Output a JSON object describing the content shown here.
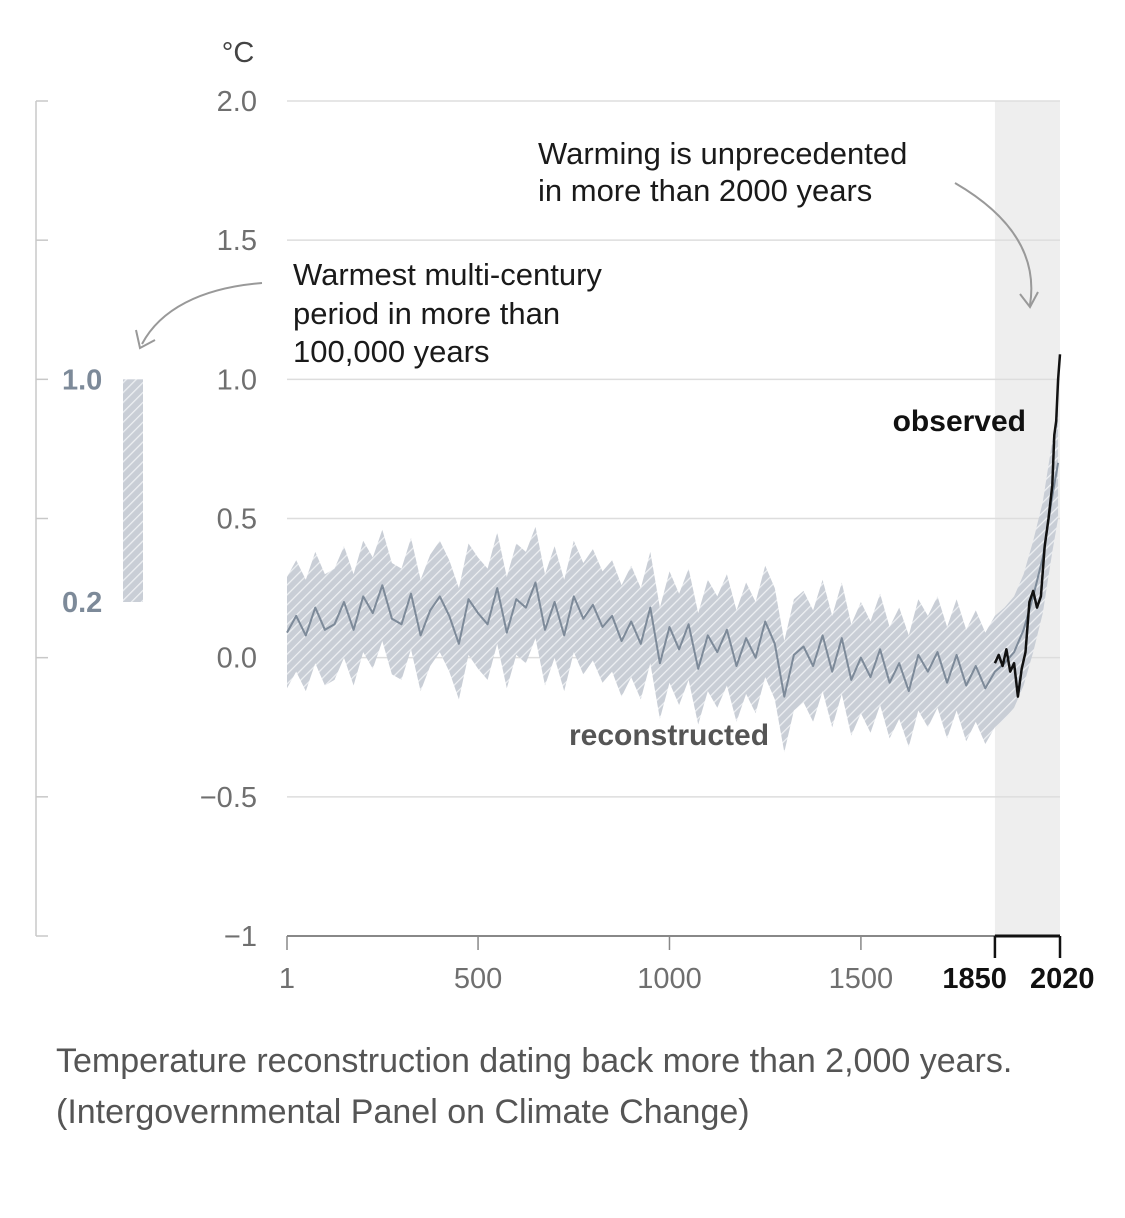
{
  "caption": "Temperature reconstruction dating back more than 2,000 years. (Intergovernmental Panel on Climate Change)",
  "chart_data": {
    "type": "line",
    "unit": "°C",
    "xlim": [
      1,
      2020
    ],
    "ylim": [
      -1,
      2.0
    ],
    "x_ticks": [
      "1",
      "500",
      "1000",
      "1500",
      "1850",
      "2020"
    ],
    "x_ticks_bold": [
      "1850",
      "2020"
    ],
    "y_ticks": [
      "2.0",
      "1.5",
      "1.0",
      "0.5",
      "0.0",
      "−0.5",
      "−1"
    ],
    "grid": "horizontal",
    "shaded_period": [
      1850,
      2020
    ],
    "side_bar": {
      "range": [
        0.2,
        1.0
      ],
      "labels": [
        "1.0",
        "0.2"
      ]
    },
    "annotations": {
      "unprecedented": [
        "Warming is unprecedented",
        "in more than 2000 years"
      ],
      "warmest": [
        "Warmest multi-century",
        "period in more than",
        "100,000 years"
      ]
    },
    "series": [
      {
        "name": "reconstructed",
        "color": "#7d8a99",
        "x": [
          1,
          25,
          50,
          75,
          100,
          125,
          150,
          175,
          200,
          225,
          250,
          275,
          300,
          325,
          350,
          375,
          400,
          425,
          450,
          475,
          500,
          525,
          550,
          575,
          600,
          625,
          650,
          675,
          700,
          725,
          750,
          775,
          800,
          825,
          850,
          875,
          900,
          925,
          950,
          975,
          1000,
          1025,
          1050,
          1075,
          1100,
          1125,
          1150,
          1175,
          1200,
          1225,
          1250,
          1275,
          1300,
          1325,
          1350,
          1375,
          1400,
          1425,
          1450,
          1475,
          1500,
          1525,
          1550,
          1575,
          1600,
          1625,
          1650,
          1675,
          1700,
          1725,
          1750,
          1775,
          1800,
          1825,
          1850,
          1875,
          1900,
          1925,
          1950,
          1975,
          2000,
          2015
        ],
        "values": [
          0.09,
          0.15,
          0.08,
          0.18,
          0.1,
          0.12,
          0.2,
          0.1,
          0.22,
          0.16,
          0.26,
          0.14,
          0.12,
          0.23,
          0.08,
          0.17,
          0.22,
          0.15,
          0.05,
          0.21,
          0.16,
          0.12,
          0.25,
          0.09,
          0.21,
          0.18,
          0.27,
          0.1,
          0.2,
          0.08,
          0.22,
          0.14,
          0.19,
          0.11,
          0.15,
          0.06,
          0.13,
          0.05,
          0.18,
          -0.02,
          0.11,
          0.03,
          0.12,
          -0.04,
          0.08,
          0.02,
          0.1,
          -0.03,
          0.07,
          0.0,
          0.13,
          0.05,
          -0.14,
          0.01,
          0.04,
          -0.03,
          0.08,
          -0.05,
          0.07,
          -0.08,
          0.0,
          -0.07,
          0.03,
          -0.09,
          -0.02,
          -0.12,
          0.01,
          -0.05,
          0.02,
          -0.09,
          0.01,
          -0.1,
          -0.03,
          -0.11,
          -0.05,
          -0.02,
          0.02,
          0.1,
          0.22,
          0.36,
          0.58,
          0.7
        ]
      },
      {
        "name": "observed",
        "color": "#111111",
        "x": [
          1850,
          1860,
          1870,
          1880,
          1890,
          1900,
          1910,
          1920,
          1930,
          1940,
          1950,
          1960,
          1970,
          1980,
          1990,
          2000,
          2005,
          2010,
          2015,
          2020
        ],
        "values": [
          -0.02,
          0.01,
          -0.03,
          0.03,
          -0.05,
          -0.02,
          -0.14,
          -0.04,
          0.02,
          0.2,
          0.24,
          0.18,
          0.22,
          0.4,
          0.5,
          0.62,
          0.8,
          0.85,
          1.0,
          1.09
        ]
      }
    ]
  }
}
